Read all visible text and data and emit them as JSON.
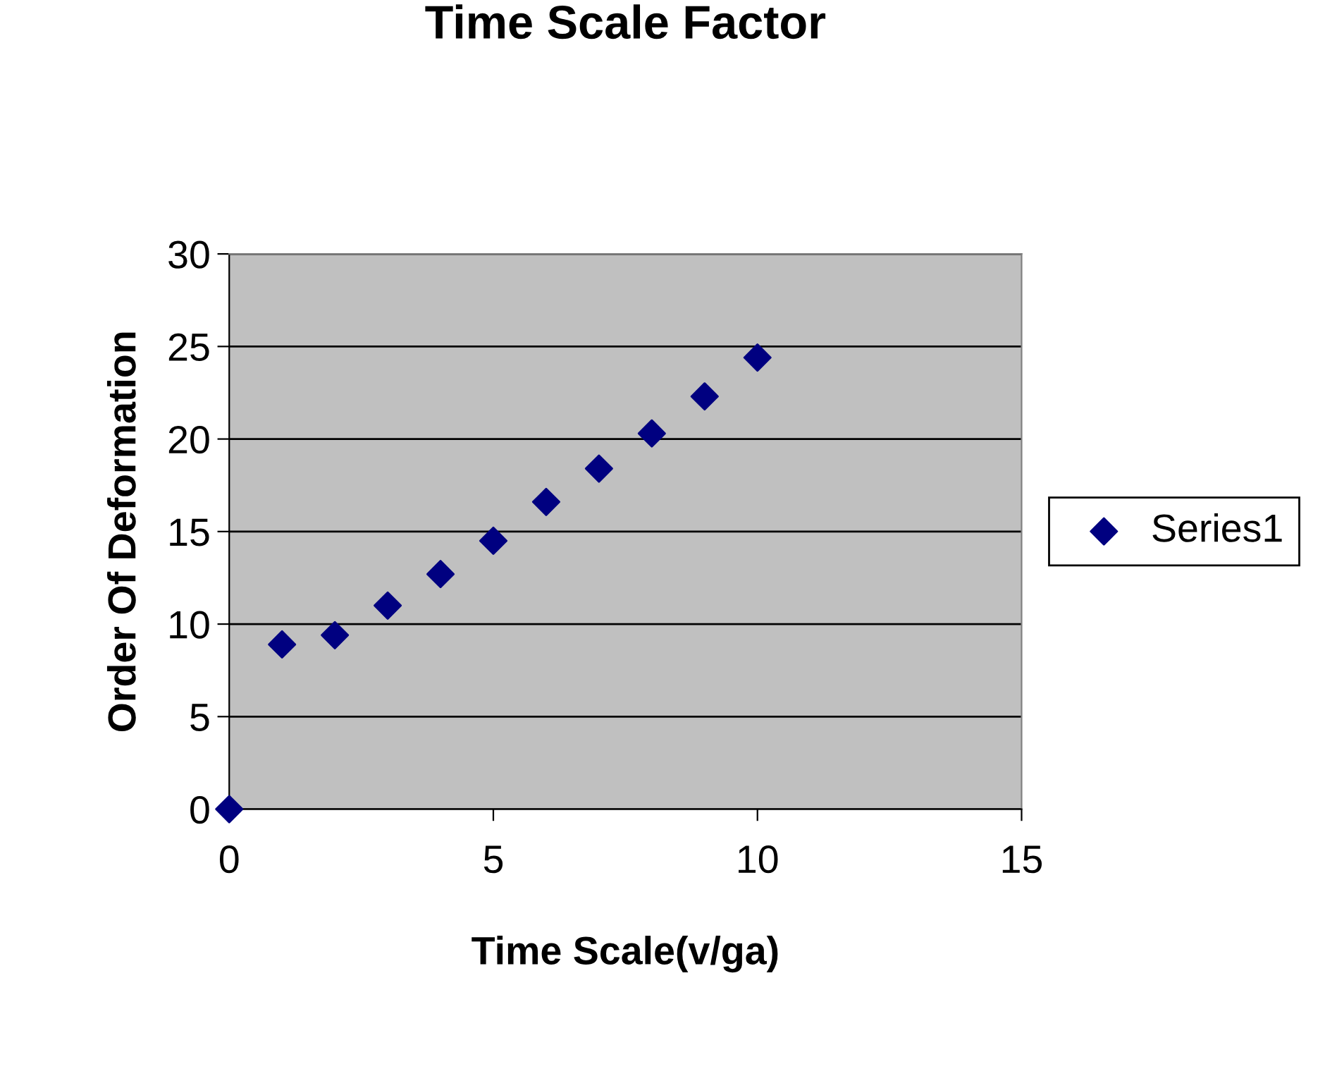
{
  "chart_data": {
    "type": "scatter",
    "title": "Time Scale Factor",
    "xlabel": "Time Scale(v/ga)",
    "ylabel": "Order Of Deformation",
    "x": [
      0,
      1,
      2,
      3,
      4,
      5,
      6,
      7,
      8,
      9,
      10
    ],
    "series": [
      {
        "name": "Series1",
        "color": "#000080",
        "values": [
          0,
          8.9,
          9.4,
          11.0,
          12.7,
          14.5,
          16.6,
          18.4,
          20.3,
          22.3,
          24.4
        ]
      }
    ],
    "xlim": [
      0,
      15
    ],
    "xticks": [
      0,
      5,
      10,
      15
    ],
    "ylim": [
      0,
      30
    ],
    "yticks": [
      0,
      5,
      10,
      15,
      20,
      25,
      30
    ],
    "grid": "y",
    "legend": "right",
    "marker": "diamond"
  }
}
